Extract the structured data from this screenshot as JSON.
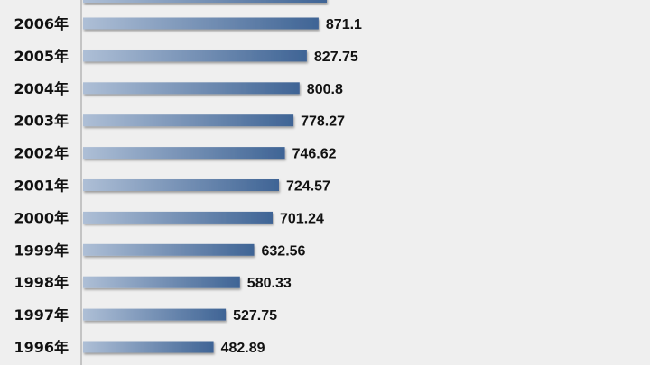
{
  "chart_data": {
    "type": "bar",
    "orientation": "horizontal",
    "categories": [
      "2006年",
      "2005年",
      "2004年",
      "2003年",
      "2002年",
      "2001年",
      "2000年",
      "1999年",
      "1998年",
      "1997年",
      "1996年"
    ],
    "values": [
      871.1,
      827.75,
      800.8,
      778.27,
      746.62,
      724.57,
      701.24,
      632.56,
      580.33,
      527.75,
      482.89
    ],
    "value_labels": [
      "871.1",
      "827.75",
      "800.8",
      "778.27",
      "746.62",
      "724.57",
      "701.24",
      "632.56",
      "580.33",
      "527.75",
      "482.89"
    ],
    "partial_bar_above_top": true,
    "colors": {
      "bar_start": "#aebfd6",
      "bar_end": "#3f6495",
      "background": "#efefef",
      "axis": "#999999",
      "text": "#111111"
    },
    "grid": false,
    "legend": "none"
  }
}
